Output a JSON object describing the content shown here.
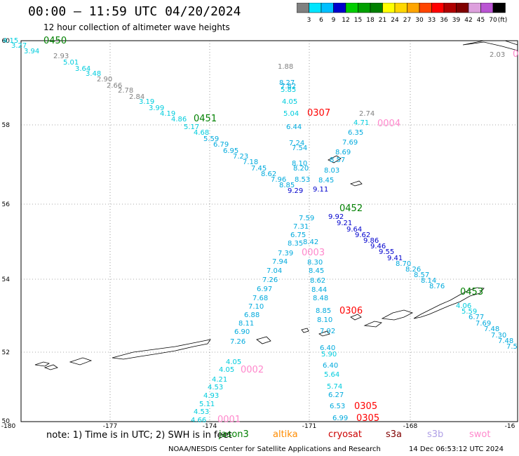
{
  "title": "00:00 — 11:59 UTC 04/20/2024",
  "subtitle": "12 hour collection of altimeter wave heights",
  "legend": {
    "values": [
      "3",
      "6",
      "9",
      "12",
      "15",
      "18",
      "21",
      "24",
      "27",
      "30",
      "33",
      "36",
      "39",
      "42",
      "45",
      "70"
    ],
    "unit": "(ft)",
    "colors": [
      "#808080",
      "#00e5ff",
      "#00bfff",
      "#0000cd",
      "#00cd00",
      "#00a000",
      "#008000",
      "#ffff00",
      "#ffd700",
      "#ffa500",
      "#ff4500",
      "#ff0000",
      "#b00000",
      "#800000",
      "#dda0dd",
      "#ba55d3",
      "#000000"
    ]
  },
  "axes": {
    "lon_labels": [
      "-180",
      "-177",
      "-174",
      "-171",
      "-168",
      "-16"
    ],
    "lat_labels": [
      "60",
      "58",
      "56",
      "54",
      "52",
      "50"
    ]
  },
  "footer": {
    "note": "note:  1) Time is in UTC;  2) SWH is in feet",
    "missions": [
      {
        "name": "jason3",
        "color": "#008000"
      },
      {
        "name": "altika",
        "color": "#ff8c00"
      },
      {
        "name": "cryosat",
        "color": "#cc0000"
      },
      {
        "name": "s3a",
        "color": "#800000"
      },
      {
        "name": "s3b",
        "color": "#b0a0e6"
      },
      {
        "name": "swot",
        "color": "#ff88cc"
      }
    ],
    "credit": "NOAA/NESDIS Center for Satellite Applications and Research",
    "timestamp": "14 Dec 06:53:12 UTC 2024"
  },
  "track_labels": [
    {
      "text": "0450",
      "color": "#008000"
    },
    {
      "text": "0451",
      "color": "#008000"
    },
    {
      "text": "0452",
      "color": "#008000"
    },
    {
      "text": "0453",
      "color": "#008000"
    },
    {
      "text": "0307",
      "color": "#ff0000"
    },
    {
      "text": "0306",
      "color": "#ff0000"
    },
    {
      "text": "0305",
      "color": "#ff0000"
    },
    {
      "text": "0305",
      "color": "#ff0000"
    },
    {
      "text": "0004",
      "color": "#ff88cc"
    },
    {
      "text": "0003",
      "color": "#ff88cc"
    },
    {
      "text": "0002",
      "color": "#ff88cc"
    },
    {
      "text": "0001",
      "color": "#ff88cc"
    },
    {
      "text": "0",
      "color": "#ff88cc"
    }
  ],
  "swh_values": [
    {
      "text": "4.15",
      "color": "#00ccdd"
    },
    {
      "text": "3.27",
      "color": "#00ccdd"
    },
    {
      "text": "3.94",
      "color": "#00ccdd"
    },
    {
      "text": "2.93",
      "color": "#808080"
    },
    {
      "text": "5.01",
      "color": "#00ccdd"
    },
    {
      "text": "3.64",
      "color": "#00ccdd"
    },
    {
      "text": "3.48",
      "color": "#00ccdd"
    },
    {
      "text": "2.90",
      "color": "#808080"
    },
    {
      "text": "2.66",
      "color": "#808080"
    },
    {
      "text": "2.78",
      "color": "#808080"
    },
    {
      "text": "2.84",
      "color": "#808080"
    },
    {
      "text": "3.19",
      "color": "#00ccdd"
    },
    {
      "text": "3.99",
      "color": "#00ccdd"
    },
    {
      "text": "4.19",
      "color": "#00ccdd"
    },
    {
      "text": "4.86",
      "color": "#00ccdd"
    },
    {
      "text": "5.17",
      "color": "#00ccdd"
    },
    {
      "text": "4.68",
      "color": "#00ccdd"
    },
    {
      "text": "5.59",
      "color": "#00aadd"
    },
    {
      "text": "6.79",
      "color": "#00aadd"
    },
    {
      "text": "6.95",
      "color": "#00aadd"
    },
    {
      "text": "7.23",
      "color": "#00aadd"
    },
    {
      "text": "7.18",
      "color": "#00aadd"
    },
    {
      "text": "7.45",
      "color": "#00aadd"
    },
    {
      "text": "8.62",
      "color": "#00aadd"
    },
    {
      "text": "7.96",
      "color": "#00aadd"
    },
    {
      "text": "8.85",
      "color": "#00aadd"
    },
    {
      "text": "9.29",
      "color": "#0000cd"
    },
    {
      "text": "1.88",
      "color": "#808080"
    },
    {
      "text": "8.27",
      "color": "#00aadd"
    },
    {
      "text": "7.82",
      "color": "#00aadd"
    },
    {
      "text": "5.85",
      "color": "#00ccdd"
    },
    {
      "text": "4.05",
      "color": "#00ccdd"
    },
    {
      "text": "5.04",
      "color": "#00ccdd"
    },
    {
      "text": "6.44",
      "color": "#00aadd"
    },
    {
      "text": "7.24",
      "color": "#00aadd"
    },
    {
      "text": "7.54",
      "color": "#00aadd"
    },
    {
      "text": "8.10",
      "color": "#00aadd"
    },
    {
      "text": "8.20",
      "color": "#00aadd"
    },
    {
      "text": "8.53",
      "color": "#00aadd"
    },
    {
      "text": "2.74",
      "color": "#808080"
    },
    {
      "text": "4.71",
      "color": "#00ccdd"
    },
    {
      "text": "6.35",
      "color": "#00aadd"
    },
    {
      "text": "7.69",
      "color": "#00aadd"
    },
    {
      "text": "8.69",
      "color": "#00aadd"
    },
    {
      "text": "8.57",
      "color": "#00aadd"
    },
    {
      "text": "8.03",
      "color": "#00aadd"
    },
    {
      "text": "8.45",
      "color": "#00aadd"
    },
    {
      "text": "9.11",
      "color": "#0000cd"
    },
    {
      "text": "9.92",
      "color": "#0000cd"
    },
    {
      "text": "9.21",
      "color": "#0000cd"
    },
    {
      "text": "9.64",
      "color": "#0000cd"
    },
    {
      "text": "9.62",
      "color": "#0000cd"
    },
    {
      "text": "9.86",
      "color": "#0000cd"
    },
    {
      "text": "9.46",
      "color": "#0000cd"
    },
    {
      "text": "9.55",
      "color": "#0000cd"
    },
    {
      "text": "9.41",
      "color": "#0000cd"
    },
    {
      "text": "8.70",
      "color": "#00aadd"
    },
    {
      "text": "8.26",
      "color": "#00aadd"
    },
    {
      "text": "8.57",
      "color": "#00aadd"
    },
    {
      "text": "8.14",
      "color": "#00aadd"
    },
    {
      "text": "8.76",
      "color": "#00aadd"
    },
    {
      "text": "4.06",
      "color": "#00ccdd"
    },
    {
      "text": "5.59",
      "color": "#00ccdd"
    },
    {
      "text": "6.77",
      "color": "#00aadd"
    },
    {
      "text": "7.69",
      "color": "#00aadd"
    },
    {
      "text": "7.48",
      "color": "#00aadd"
    },
    {
      "text": "7.30",
      "color": "#00aadd"
    },
    {
      "text": "7.48",
      "color": "#00aadd"
    },
    {
      "text": "7.5",
      "color": "#00aadd"
    },
    {
      "text": "7.59",
      "color": "#00aadd"
    },
    {
      "text": "7.31",
      "color": "#00aadd"
    },
    {
      "text": "6.75",
      "color": "#00aadd"
    },
    {
      "text": "8.35",
      "color": "#00aadd"
    },
    {
      "text": "7.39",
      "color": "#00aadd"
    },
    {
      "text": "7.94",
      "color": "#00aadd"
    },
    {
      "text": "7.04",
      "color": "#00aadd"
    },
    {
      "text": "7.26",
      "color": "#00aadd"
    },
    {
      "text": "6.97",
      "color": "#00aadd"
    },
    {
      "text": "7.68",
      "color": "#00aadd"
    },
    {
      "text": "7.10",
      "color": "#00aadd"
    },
    {
      "text": "6.88",
      "color": "#00aadd"
    },
    {
      "text": "8.11",
      "color": "#00aadd"
    },
    {
      "text": "6.90",
      "color": "#00aadd"
    },
    {
      "text": "7.26",
      "color": "#00aadd"
    },
    {
      "text": "8.42",
      "color": "#00aadd"
    },
    {
      "text": "8.30",
      "color": "#00aadd"
    },
    {
      "text": "8.45",
      "color": "#00aadd"
    },
    {
      "text": "8.62",
      "color": "#00aadd"
    },
    {
      "text": "8.44",
      "color": "#00aadd"
    },
    {
      "text": "8.48",
      "color": "#00aadd"
    },
    {
      "text": "8.85",
      "color": "#00aadd"
    },
    {
      "text": "8.10",
      "color": "#00aadd"
    },
    {
      "text": "7.92",
      "color": "#00aadd"
    },
    {
      "text": "6.40",
      "color": "#00aadd"
    },
    {
      "text": "5.90",
      "color": "#00ccdd"
    },
    {
      "text": "6.40",
      "color": "#00aadd"
    },
    {
      "text": "5.64",
      "color": "#00ccdd"
    },
    {
      "text": "5.74",
      "color": "#00ccdd"
    },
    {
      "text": "6.27",
      "color": "#00aadd"
    },
    {
      "text": "6.53",
      "color": "#00aadd"
    },
    {
      "text": "6.99",
      "color": "#00aadd"
    },
    {
      "text": "4.05",
      "color": "#00ccdd"
    },
    {
      "text": "4.05",
      "color": "#00ccdd"
    },
    {
      "text": "4.21",
      "color": "#00ccdd"
    },
    {
      "text": "4.53",
      "color": "#00ccdd"
    },
    {
      "text": "4.93",
      "color": "#00ccdd"
    },
    {
      "text": "5.11",
      "color": "#00ccdd"
    },
    {
      "text": "4.53",
      "color": "#00ccdd"
    },
    {
      "text": "4.66",
      "color": "#00ccdd"
    },
    {
      "text": "2.03",
      "color": "#808080"
    }
  ]
}
